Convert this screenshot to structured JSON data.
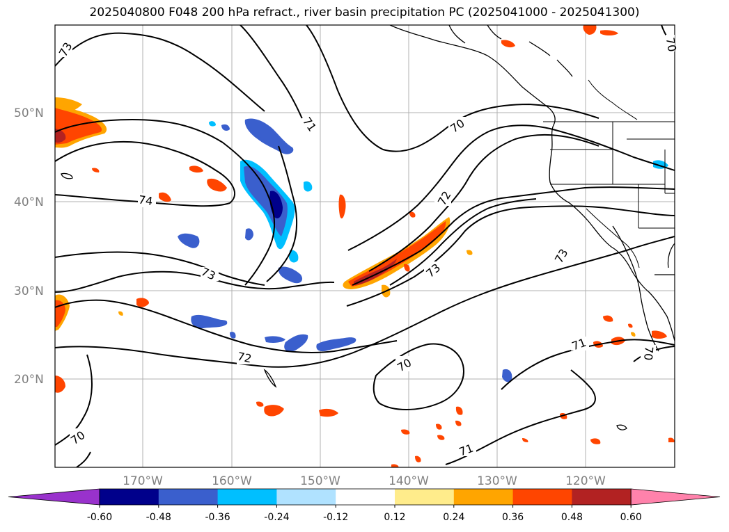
{
  "title": "2025040800 F048 200 hPa refract., river basin precipitation PC (2025041000 - 2025041300)",
  "lat_labels": [
    "50°N",
    "40°N",
    "30°N",
    "20°N"
  ],
  "lon_labels": [
    "170°W",
    "160°W",
    "150°W",
    "140°W",
    "130°W",
    "120°W"
  ],
  "contour_labels": [
    {
      "text": "73",
      "id": "c73a"
    },
    {
      "text": "71",
      "id": "c71a"
    },
    {
      "text": "70",
      "id": "c70a"
    },
    {
      "text": "74",
      "id": "c74a"
    },
    {
      "text": "72",
      "id": "c72a"
    },
    {
      "text": "73",
      "id": "c73b"
    },
    {
      "text": "73",
      "id": "c73c"
    },
    {
      "text": "73",
      "id": "c73d"
    },
    {
      "text": "72",
      "id": "c72b"
    },
    {
      "text": "70",
      "id": "c70b"
    },
    {
      "text": "71",
      "id": "c71b"
    },
    {
      "text": "70",
      "id": "c70c"
    },
    {
      "text": "71",
      "id": "c71c"
    },
    {
      "text": "70",
      "id": "c70d"
    },
    {
      "text": "70",
      "id": "c70e"
    }
  ],
  "colorbar": {
    "ticks": [
      "-0.60",
      "-0.48",
      "-0.36",
      "-0.24",
      "-0.12",
      "0.12",
      "0.24",
      "0.36",
      "0.48",
      "0.60"
    ],
    "colors": [
      "#9932CC",
      "#00008B",
      "#3A5FCD",
      "#00BFFF",
      "#B0E2FF",
      "#FFFFFF",
      "#FFEC8B",
      "#FFA500",
      "#FF4500",
      "#B22222",
      "#FF82AB"
    ]
  }
}
